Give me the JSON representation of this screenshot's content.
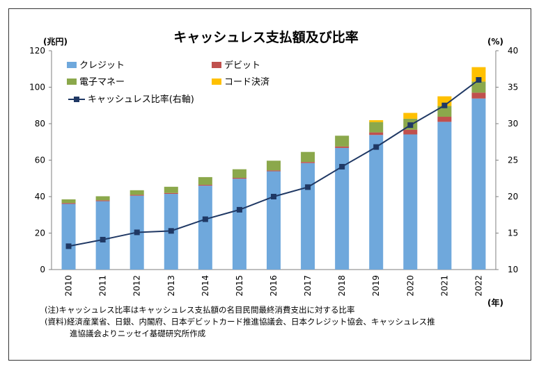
{
  "chart_data": {
    "type": "bar",
    "stacked": true,
    "title": "キャッシュレス支払額及び比率",
    "y_left_unit": "(兆円)",
    "y_right_unit": "(%)",
    "x_unit": "(年)",
    "categories": [
      "2010",
      "2011",
      "2012",
      "2013",
      "2014",
      "2015",
      "2016",
      "2017",
      "2018",
      "2019",
      "2020",
      "2021",
      "2022"
    ],
    "ylim_left": [
      0,
      120
    ],
    "ylim_right": [
      10,
      40
    ],
    "yticks_left": [
      "0",
      "20",
      "40",
      "60",
      "80",
      "100",
      "120"
    ],
    "yticks_right": [
      "10",
      "15",
      "20",
      "25",
      "30",
      "35",
      "40"
    ],
    "grid": false,
    "legend_position": "top-left",
    "series": [
      {
        "name": "クレジット",
        "color": "#6FA8DC",
        "values": [
          36.0,
          37.5,
          40.5,
          41.5,
          46.0,
          49.8,
          53.9,
          58.4,
          66.7,
          73.8,
          74.1,
          81.0,
          93.8
        ]
      },
      {
        "name": "デビット",
        "color": "#C0504D",
        "values": [
          0.5,
          0.5,
          0.5,
          0.5,
          0.5,
          0.5,
          0.5,
          0.6,
          0.8,
          1.4,
          2.6,
          2.8,
          3.2
        ]
      },
      {
        "name": "電子マネー",
        "color": "#8BA84B",
        "values": [
          2.0,
          2.2,
          2.5,
          3.4,
          4.2,
          4.7,
          5.3,
          5.5,
          5.9,
          5.7,
          6.0,
          5.9,
          6.1
        ]
      },
      {
        "name": "コード決済",
        "color": "#FFC000",
        "values": [
          0,
          0,
          0,
          0,
          0,
          0,
          0,
          0,
          0,
          1.0,
          3.2,
          5.3,
          7.9
        ]
      }
    ],
    "line_series": {
      "name": "キャッシュレス比率(右軸)",
      "color": "#1F3864",
      "axis": "right",
      "values": [
        13.2,
        14.1,
        15.1,
        15.3,
        16.9,
        18.2,
        20.0,
        21.3,
        24.1,
        26.8,
        29.8,
        32.5,
        36.0
      ]
    },
    "notes": [
      "(注)キャッシュレス比率はキャッシュレス支払額の名目民間最終消費支出に対する比率",
      "(資料)経済産業省、日銀、内閣府、日本デビットカード推進協議会、日本クレジット協会、キャッシュレス推",
      "進協議会よりニッセイ基礎研究所作成"
    ]
  }
}
